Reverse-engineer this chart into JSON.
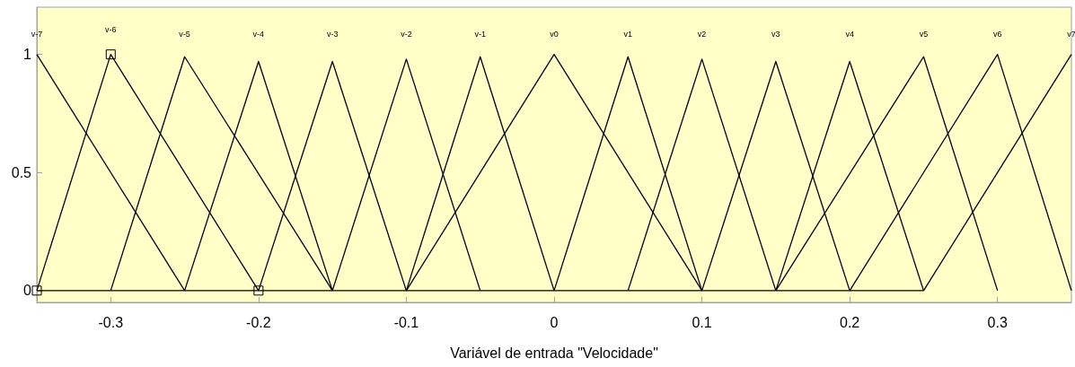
{
  "chart_data": {
    "type": "line",
    "xlabel": "Variável de entrada \"Velocidade\"",
    "xlim": [
      -0.35,
      0.35
    ],
    "xticks": [
      -0.3,
      -0.2,
      -0.1,
      0,
      0.1,
      0.2,
      0.3
    ],
    "ylim": [
      -0.05,
      1.2
    ],
    "yticks": [
      0,
      0.5,
      1
    ],
    "grid": false,
    "legend": false,
    "marker": "none",
    "line_style": "solid",
    "series": [
      {
        "name": "v-7",
        "color": "#000000",
        "x": [
          -0.35,
          -0.25
        ],
        "values": [
          1,
          0
        ]
      },
      {
        "name": "v-6",
        "color": "#000000",
        "marker": "square",
        "x": [
          -0.35,
          -0.3,
          -0.2
        ],
        "values": [
          0,
          1,
          0
        ]
      },
      {
        "name": "v-5",
        "color": "#000000",
        "x": [
          -0.3,
          -0.25,
          -0.15
        ],
        "values": [
          0,
          0.99,
          0
        ]
      },
      {
        "name": "v-4",
        "color": "#000000",
        "x": [
          -0.25,
          -0.2,
          -0.15
        ],
        "values": [
          0,
          0.97,
          0
        ]
      },
      {
        "name": "v-3",
        "color": "#000000",
        "x": [
          -0.2,
          -0.15,
          -0.1
        ],
        "values": [
          0,
          0.97,
          0
        ]
      },
      {
        "name": "v-2",
        "color": "#000000",
        "x": [
          -0.15,
          -0.1,
          -0.05
        ],
        "values": [
          0,
          0.98,
          0
        ]
      },
      {
        "name": "v-1",
        "color": "#000000",
        "x": [
          -0.1,
          -0.05,
          0
        ],
        "values": [
          0,
          0.99,
          0
        ]
      },
      {
        "name": "v0",
        "color": "#000000",
        "x": [
          -0.1,
          0,
          0.1
        ],
        "values": [
          0,
          1,
          0
        ]
      },
      {
        "name": "v1",
        "color": "#000000",
        "x": [
          0,
          0.05,
          0.1
        ],
        "values": [
          0,
          0.99,
          0
        ]
      },
      {
        "name": "v2",
        "color": "#000000",
        "x": [
          0.05,
          0.1,
          0.15
        ],
        "values": [
          0,
          0.98,
          0
        ]
      },
      {
        "name": "v3",
        "color": "#000000",
        "x": [
          0.1,
          0.15,
          0.2
        ],
        "values": [
          0,
          0.97,
          0
        ]
      },
      {
        "name": "v4",
        "color": "#000000",
        "x": [
          0.15,
          0.2,
          0.25
        ],
        "values": [
          0,
          0.97,
          0
        ]
      },
      {
        "name": "v5",
        "color": "#000000",
        "x": [
          0.15,
          0.25,
          0.3
        ],
        "values": [
          0,
          0.99,
          0
        ]
      },
      {
        "name": "v6",
        "color": "#000000",
        "x": [
          0.2,
          0.3,
          0.35
        ],
        "values": [
          0,
          1,
          0
        ]
      },
      {
        "name": "v7",
        "color": "#000000",
        "x": [
          -0.35,
          0.25,
          0.35
        ],
        "values": [
          0,
          0,
          1
        ]
      }
    ]
  }
}
